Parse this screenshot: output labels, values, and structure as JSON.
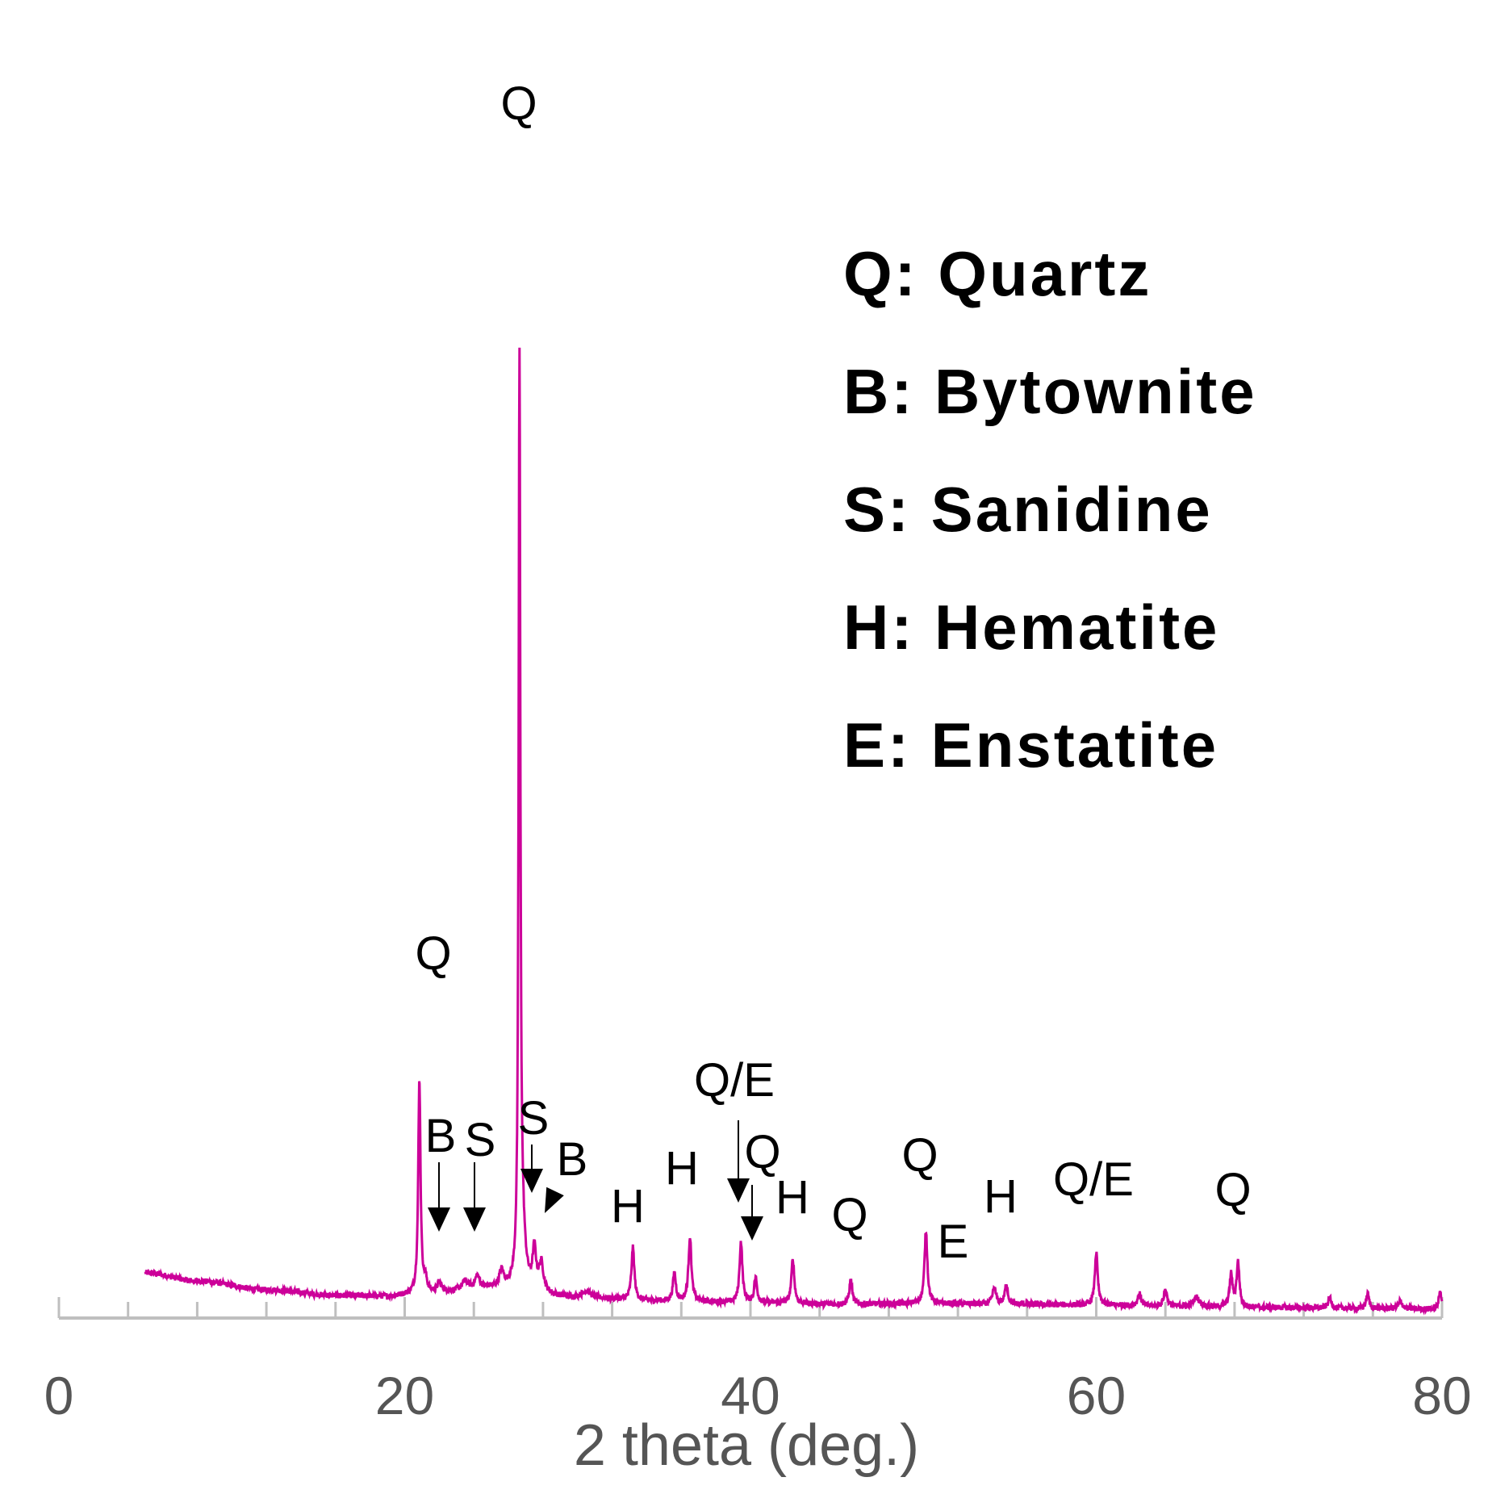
{
  "chart_data": {
    "type": "line",
    "xlabel": "2 theta (deg.)",
    "ylabel": "",
    "xlim": [
      0,
      80
    ],
    "xticks": [
      0,
      20,
      40,
      60,
      80
    ],
    "grid": false,
    "series_color": "#cc0099",
    "axis_color": "#bfbfbf",
    "legend": [
      {
        "text": "Q: Quartz"
      },
      {
        "text": "B: Bytownite"
      },
      {
        "text": "S: Sanidine"
      },
      {
        "text": "H: Hematite"
      },
      {
        "text": "E: Enstatite"
      }
    ],
    "peak_labels": [
      {
        "text": "Q",
        "x": 26.6
      },
      {
        "text": "Q",
        "x": 20.8
      },
      {
        "text": "B",
        "x": 22.0
      },
      {
        "text": "S",
        "x": 24.2
      },
      {
        "text": "S",
        "x": 27.5
      },
      {
        "text": "B",
        "x": 28.5
      },
      {
        "text": "H",
        "x": 33.1
      },
      {
        "text": "H",
        "x": 35.6
      },
      {
        "text": "Q/E",
        "x": 39.4
      },
      {
        "text": "Q",
        "x": 40.3
      },
      {
        "text": "H",
        "x": 42.4
      },
      {
        "text": "Q",
        "x": 45.7
      },
      {
        "text": "Q",
        "x": 50.1
      },
      {
        "text": "E",
        "x": 52.1
      },
      {
        "text": "H",
        "x": 54.1
      },
      {
        "text": "Q/E",
        "x": 59.9
      },
      {
        "text": "Q",
        "x": 68.1
      }
    ],
    "baseline": [
      [
        5,
        55
      ],
      [
        8,
        45
      ],
      [
        12,
        34
      ],
      [
        16,
        27
      ],
      [
        19,
        26
      ],
      [
        20.5,
        28
      ],
      [
        25,
        36
      ],
      [
        30,
        24
      ],
      [
        35,
        20
      ],
      [
        40,
        18
      ],
      [
        45,
        16
      ],
      [
        50,
        17
      ],
      [
        55,
        16
      ],
      [
        60,
        15
      ],
      [
        65,
        13
      ],
      [
        70,
        12
      ],
      [
        75,
        11
      ],
      [
        80,
        10
      ]
    ],
    "peaks": [
      {
        "x": 20.85,
        "height": 265,
        "width": 0.08
      },
      {
        "x": 21.2,
        "height": 15,
        "width": 0.12
      },
      {
        "x": 22.0,
        "height": 12,
        "width": 0.15
      },
      {
        "x": 23.5,
        "height": 10,
        "width": 0.2
      },
      {
        "x": 24.2,
        "height": 15,
        "width": 0.15
      },
      {
        "x": 25.6,
        "height": 20,
        "width": 0.15
      },
      {
        "x": 26.64,
        "height": 1130,
        "width": 0.06
      },
      {
        "x": 26.8,
        "height": 60,
        "width": 0.2
      },
      {
        "x": 27.5,
        "height": 50,
        "width": 0.12
      },
      {
        "x": 27.9,
        "height": 35,
        "width": 0.15
      },
      {
        "x": 30.5,
        "height": 8,
        "width": 0.3
      },
      {
        "x": 33.2,
        "height": 65,
        "width": 0.1
      },
      {
        "x": 35.6,
        "height": 35,
        "width": 0.1
      },
      {
        "x": 36.5,
        "height": 80,
        "width": 0.1
      },
      {
        "x": 39.45,
        "height": 75,
        "width": 0.1
      },
      {
        "x": 40.3,
        "height": 30,
        "width": 0.1
      },
      {
        "x": 42.45,
        "height": 55,
        "width": 0.1
      },
      {
        "x": 45.8,
        "height": 30,
        "width": 0.1
      },
      {
        "x": 50.15,
        "height": 90,
        "width": 0.1
      },
      {
        "x": 54.1,
        "height": 20,
        "width": 0.12
      },
      {
        "x": 54.8,
        "height": 25,
        "width": 0.1
      },
      {
        "x": 60.0,
        "height": 65,
        "width": 0.1
      },
      {
        "x": 62.5,
        "height": 15,
        "width": 0.12
      },
      {
        "x": 64.0,
        "height": 20,
        "width": 0.12
      },
      {
        "x": 65.8,
        "height": 12,
        "width": 0.2
      },
      {
        "x": 67.8,
        "height": 40,
        "width": 0.1
      },
      {
        "x": 68.2,
        "height": 55,
        "width": 0.1
      },
      {
        "x": 73.5,
        "height": 12,
        "width": 0.12
      },
      {
        "x": 75.7,
        "height": 18,
        "width": 0.1
      },
      {
        "x": 77.6,
        "height": 10,
        "width": 0.12
      },
      {
        "x": 79.9,
        "height": 22,
        "width": 0.1
      }
    ]
  }
}
